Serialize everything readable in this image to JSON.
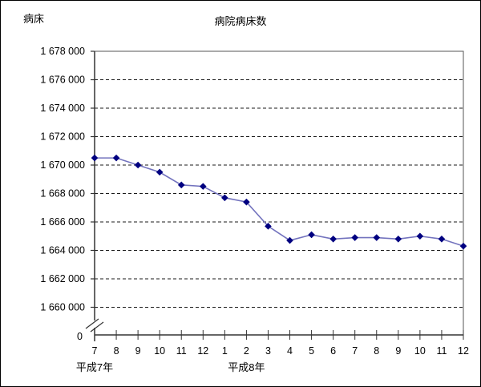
{
  "chart": {
    "title": "病院病床数",
    "y_unit_label": "病床"
  },
  "chart_data": {
    "type": "line",
    "title": "病院病床数",
    "ylabel": "病床",
    "xlabel": "",
    "categories": [
      "7",
      "8",
      "9",
      "10",
      "11",
      "12",
      "1",
      "2",
      "3",
      "4",
      "5",
      "6",
      "7",
      "8",
      "9",
      "10",
      "11",
      "12"
    ],
    "category_groups": [
      {
        "label": "平成7年",
        "at_index": 0,
        "start_index": 0,
        "count": 6
      },
      {
        "label": "平成8年",
        "at_index": 7,
        "start_index": 6,
        "count": 12
      }
    ],
    "series": [
      {
        "name": "病院病床数",
        "values": [
          1670500,
          1670500,
          1670000,
          1669500,
          1668600,
          1668500,
          1667700,
          1667400,
          1665700,
          1664700,
          1665100,
          1664800,
          1664900,
          1664900,
          1664800,
          1665000,
          1664800,
          1664300
        ]
      }
    ],
    "ylim": [
      1660000,
      1678000
    ],
    "y_tick_step": 2000,
    "y_ticks": [
      1678000,
      1676000,
      1674000,
      1672000,
      1670000,
      1668000,
      1666000,
      1664000,
      1662000,
      1660000
    ],
    "y_tick_labels": [
      "1 678 000",
      "1 676 000",
      "1 674 000",
      "1 672 000",
      "1 670 000",
      "1 668 000",
      "1 666 000",
      "1 664 000",
      "1 662 000",
      "1 660 000"
    ],
    "y_origin_label": "0",
    "axis_break": true,
    "grid": "horizontal-dashed",
    "legend": "none",
    "line_color": "#7373BE",
    "marker_color": "#000080",
    "marker": "diamond",
    "grid_color": "#1a1a1a",
    "axis_color": "#333333"
  }
}
